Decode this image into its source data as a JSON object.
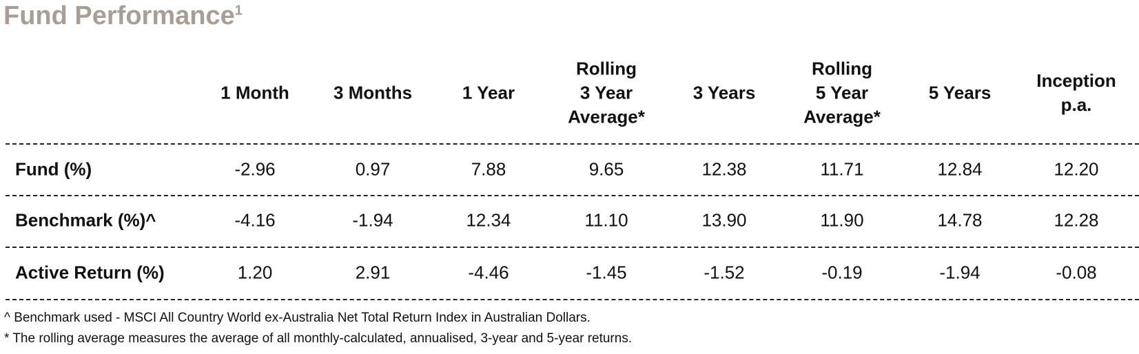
{
  "header": {
    "title": "Fund Performance",
    "superscript": "1"
  },
  "table": {
    "columns": [
      [
        "1 Month"
      ],
      [
        "3 Months"
      ],
      [
        "1 Year"
      ],
      [
        "Rolling",
        "3 Year",
        "Average*"
      ],
      [
        "3 Years"
      ],
      [
        "Rolling",
        "5 Year",
        "Average*"
      ],
      [
        "5 Years"
      ],
      [
        "Inception",
        "p.a."
      ]
    ],
    "rows": [
      {
        "label": "Fund (%)",
        "cells": [
          "-2.96",
          "0.97",
          "7.88",
          "9.65",
          "12.38",
          "11.71",
          "12.84",
          "12.20"
        ]
      },
      {
        "label": "Benchmark (%)^",
        "cells": [
          "-4.16",
          "-1.94",
          "12.34",
          "11.10",
          "13.90",
          "11.90",
          "14.78",
          "12.28"
        ]
      },
      {
        "label": "Active Return (%)",
        "cells": [
          "1.20",
          "2.91",
          "-4.46",
          "-1.45",
          "-1.52",
          "-0.19",
          "-1.94",
          "-0.08"
        ]
      }
    ]
  },
  "notes": [
    "^ Benchmark used - MSCI All Country World ex-Australia Net Total Return Index in Australian Dollars.",
    "* The rolling average measures the average of all monthly-calculated, annualised, 3-year and 5-year returns."
  ]
}
